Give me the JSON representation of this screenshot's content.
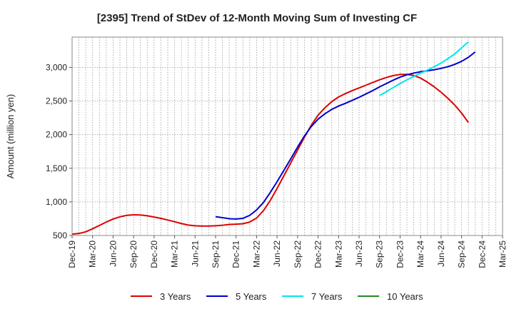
{
  "chart_data": {
    "type": "line",
    "title": "[2395]  Trend of StDev of 12-Month Moving Sum of Investing CF",
    "ylabel": "Amount (million yen)",
    "xlabel": "",
    "ylim": [
      500,
      3450
    ],
    "yticks": [
      500,
      1000,
      1500,
      2000,
      2500,
      3000
    ],
    "ytick_labels": [
      "500",
      "1,000",
      "1,500",
      "2,000",
      "2,500",
      "3,000"
    ],
    "xtick_labels": [
      "Dec-19",
      "Mar-20",
      "Jun-20",
      "Sep-20",
      "Dec-20",
      "Mar-21",
      "Jun-21",
      "Sep-21",
      "Dec-21",
      "Mar-22",
      "Jun-22",
      "Sep-22",
      "Dec-22",
      "Mar-23",
      "Jun-23",
      "Sep-23",
      "Dec-23",
      "Mar-24",
      "Jun-24",
      "Sep-24",
      "Dec-24",
      "Mar-25"
    ],
    "grid": true,
    "legend_position": "bottom",
    "series": [
      {
        "name": "3 Years",
        "color": "#dd0000",
        "start_index": 0,
        "values": [
          520,
          530,
          555,
          600,
          650,
          700,
          745,
          778,
          800,
          808,
          805,
          793,
          775,
          755,
          730,
          705,
          678,
          655,
          645,
          640,
          640,
          645,
          652,
          665,
          668,
          675,
          700,
          760,
          870,
          1020,
          1200,
          1390,
          1580,
          1770,
          1960,
          2140,
          2290,
          2400,
          2490,
          2560,
          2610,
          2655,
          2695,
          2735,
          2775,
          2815,
          2850,
          2878,
          2895,
          2895,
          2880,
          2840,
          2780,
          2710,
          2630,
          2540,
          2440,
          2320,
          2180
        ]
      },
      {
        "name": "5 Years",
        "color": "#0000cc",
        "start_index": 21,
        "values": [
          780,
          765,
          750,
          745,
          755,
          800,
          880,
          990,
          1140,
          1300,
          1470,
          1640,
          1815,
          1980,
          2120,
          2230,
          2310,
          2375,
          2425,
          2465,
          2510,
          2555,
          2605,
          2655,
          2710,
          2760,
          2810,
          2855,
          2890,
          2915,
          2935,
          2950,
          2965,
          2985,
          3010,
          3045,
          3090,
          3150,
          3230
        ]
      },
      {
        "name": "7 Years",
        "color": "#00e5ee",
        "start_index": 45,
        "values": [
          2580,
          2640,
          2700,
          2760,
          2815,
          2865,
          2915,
          2960,
          3010,
          3065,
          3130,
          3200,
          3290,
          3380
        ]
      },
      {
        "name": "10 Years",
        "color": "#228822",
        "start_index": 0,
        "values": []
      }
    ]
  }
}
